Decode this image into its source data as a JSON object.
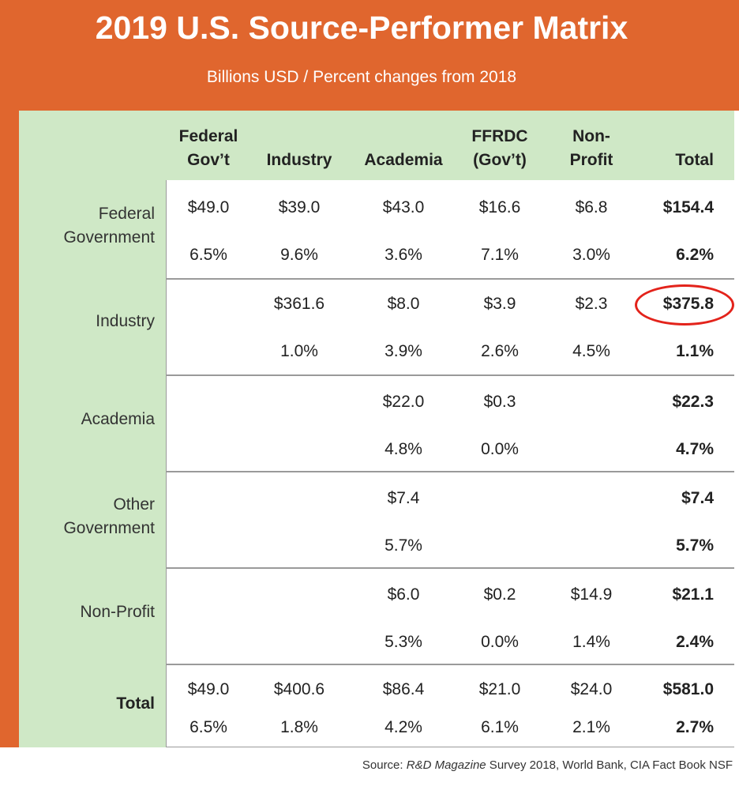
{
  "header": {
    "title": "2019 U.S. Source-Performer Matrix",
    "subtitle": "Billions USD / Percent changes from 2018"
  },
  "source": {
    "prefix": "Source: ",
    "publication": "R&D Magazine",
    "suffix": " Survey 2018, World Bank, CIA Fact Book NSF"
  },
  "colors": {
    "banner": "#e0662e",
    "green": "#cfe8c6",
    "highlight": "#e3231b"
  },
  "chart_data": {
    "type": "table",
    "title": "2019 U.S. Source-Performer Matrix",
    "subtitle": "Billions USD / Percent changes from 2018",
    "columns": [
      {
        "line1": "Federal",
        "line2": "Gov’t"
      },
      {
        "line1": "",
        "line2": "Industry"
      },
      {
        "line1": "",
        "line2": "Academia"
      },
      {
        "line1": "FFRDC",
        "line2": "(Gov’t)"
      },
      {
        "line1": "Non-",
        "line2": "Profit"
      },
      {
        "line1": "",
        "line2": "Total"
      }
    ],
    "rows": [
      {
        "label1": "Federal",
        "label2": "Government",
        "values": [
          "$49.0",
          "$39.0",
          "$43.0",
          "$16.6",
          "$6.8",
          "$154.4"
        ],
        "changes": [
          "6.5%",
          "9.6%",
          "3.6%",
          "7.1%",
          "3.0%",
          "6.2%"
        ]
      },
      {
        "label1": "Industry",
        "label2": "",
        "values": [
          "",
          "$361.6",
          "$8.0",
          "$3.9",
          "$2.3",
          "$375.8"
        ],
        "changes": [
          "",
          "1.0%",
          "3.9%",
          "2.6%",
          "4.5%",
          "1.1%"
        ]
      },
      {
        "label1": "Academia",
        "label2": "",
        "values": [
          "",
          "",
          "$22.0",
          "$0.3",
          "",
          "$22.3"
        ],
        "changes": [
          "",
          "",
          "4.8%",
          "0.0%",
          "",
          "4.7%"
        ]
      },
      {
        "label1": "Other",
        "label2": "Government",
        "values": [
          "",
          "",
          "$7.4",
          "",
          "",
          "$7.4"
        ],
        "changes": [
          "",
          "",
          "5.7%",
          "",
          "",
          "5.7%"
        ]
      },
      {
        "label1": "Non-Profit",
        "label2": "",
        "values": [
          "",
          "",
          "$6.0",
          "$0.2",
          "$14.9",
          "$21.1"
        ],
        "changes": [
          "",
          "",
          "5.3%",
          "0.0%",
          "1.4%",
          "2.4%"
        ]
      },
      {
        "label1": "Total",
        "label2": "",
        "values": [
          "$49.0",
          "$400.6",
          "$86.4",
          "$21.0",
          "$24.0",
          "$581.0"
        ],
        "changes": [
          "6.5%",
          "1.8%",
          "4.2%",
          "6.1%",
          "2.1%",
          "2.7%"
        ]
      }
    ],
    "highlighted_cell": {
      "row": "Industry",
      "column": "Total",
      "value": "$375.8"
    }
  }
}
